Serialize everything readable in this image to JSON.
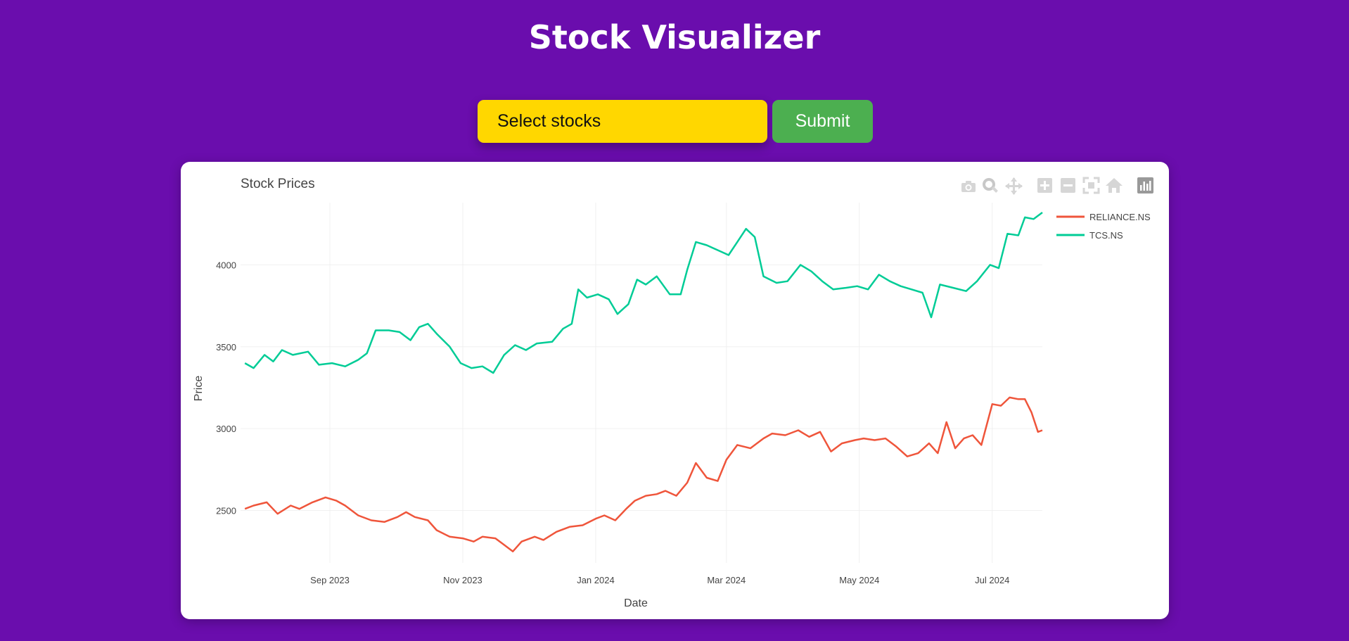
{
  "header": {
    "title": "Stock Visualizer"
  },
  "controls": {
    "select_placeholder": "Select stocks",
    "submit_label": "Submit"
  },
  "modebar": {
    "icons": [
      "camera-icon",
      "zoom-icon",
      "pan-icon",
      "zoom-in-icon",
      "zoom-out-icon",
      "autoscale-icon",
      "reset-axes-icon",
      "plotly-logo-icon"
    ]
  },
  "colors": {
    "background": "#6a0dad",
    "select": "#ffd700",
    "submit": "#4caf50"
  },
  "chart_data": {
    "type": "line",
    "title": "Stock Prices",
    "xlabel": "Date",
    "ylabel": "Price",
    "xlim": [
      "2023-07-22",
      "2024-07-24"
    ],
    "ylim": [
      2180,
      4380
    ],
    "x_ticks": [
      {
        "date": "2023-09-01",
        "label": "Sep 2023"
      },
      {
        "date": "2023-11-01",
        "label": "Nov 2023"
      },
      {
        "date": "2024-01-01",
        "label": "Jan 2024"
      },
      {
        "date": "2024-03-01",
        "label": "Mar 2024"
      },
      {
        "date": "2024-05-01",
        "label": "May 2024"
      },
      {
        "date": "2024-07-01",
        "label": "Jul 2024"
      }
    ],
    "y_ticks": [
      2500,
      3000,
      3500,
      4000
    ],
    "legend_position": "top-right",
    "series": [
      {
        "name": "RELIANCE.NS",
        "color": "#ef553b",
        "points": [
          [
            "2023-07-24",
            2510
          ],
          [
            "2023-07-28",
            2530
          ],
          [
            "2023-08-03",
            2550
          ],
          [
            "2023-08-08",
            2480
          ],
          [
            "2023-08-14",
            2530
          ],
          [
            "2023-08-18",
            2510
          ],
          [
            "2023-08-24",
            2550
          ],
          [
            "2023-08-30",
            2580
          ],
          [
            "2023-09-04",
            2560
          ],
          [
            "2023-09-08",
            2530
          ],
          [
            "2023-09-14",
            2470
          ],
          [
            "2023-09-20",
            2440
          ],
          [
            "2023-09-26",
            2430
          ],
          [
            "2023-10-02",
            2460
          ],
          [
            "2023-10-06",
            2490
          ],
          [
            "2023-10-10",
            2460
          ],
          [
            "2023-10-16",
            2440
          ],
          [
            "2023-10-20",
            2380
          ],
          [
            "2023-10-26",
            2340
          ],
          [
            "2023-11-01",
            2330
          ],
          [
            "2023-11-06",
            2310
          ],
          [
            "2023-11-10",
            2340
          ],
          [
            "2023-11-16",
            2330
          ],
          [
            "2023-11-20",
            2290
          ],
          [
            "2023-11-24",
            2250
          ],
          [
            "2023-11-28",
            2310
          ],
          [
            "2023-12-04",
            2340
          ],
          [
            "2023-12-08",
            2320
          ],
          [
            "2023-12-14",
            2370
          ],
          [
            "2023-12-20",
            2400
          ],
          [
            "2023-12-26",
            2410
          ],
          [
            "2024-01-01",
            2450
          ],
          [
            "2024-01-05",
            2470
          ],
          [
            "2024-01-10",
            2440
          ],
          [
            "2024-01-15",
            2510
          ],
          [
            "2024-01-19",
            2560
          ],
          [
            "2024-01-24",
            2590
          ],
          [
            "2024-01-29",
            2600
          ],
          [
            "2024-02-02",
            2620
          ],
          [
            "2024-02-07",
            2590
          ],
          [
            "2024-02-12",
            2670
          ],
          [
            "2024-02-16",
            2790
          ],
          [
            "2024-02-21",
            2700
          ],
          [
            "2024-02-26",
            2680
          ],
          [
            "2024-03-01",
            2810
          ],
          [
            "2024-03-06",
            2900
          ],
          [
            "2024-03-12",
            2880
          ],
          [
            "2024-03-18",
            2940
          ],
          [
            "2024-03-22",
            2970
          ],
          [
            "2024-03-28",
            2960
          ],
          [
            "2024-04-03",
            2990
          ],
          [
            "2024-04-08",
            2950
          ],
          [
            "2024-04-13",
            2980
          ],
          [
            "2024-04-18",
            2860
          ],
          [
            "2024-04-23",
            2910
          ],
          [
            "2024-04-29",
            2930
          ],
          [
            "2024-05-03",
            2940
          ],
          [
            "2024-05-08",
            2930
          ],
          [
            "2024-05-13",
            2940
          ],
          [
            "2024-05-18",
            2890
          ],
          [
            "2024-05-23",
            2830
          ],
          [
            "2024-05-28",
            2850
          ],
          [
            "2024-06-02",
            2910
          ],
          [
            "2024-06-06",
            2850
          ],
          [
            "2024-06-10",
            3040
          ],
          [
            "2024-06-14",
            2880
          ],
          [
            "2024-06-18",
            2940
          ],
          [
            "2024-06-22",
            2960
          ],
          [
            "2024-06-26",
            2900
          ],
          [
            "2024-07-01",
            3150
          ],
          [
            "2024-07-05",
            3140
          ],
          [
            "2024-07-09",
            3190
          ],
          [
            "2024-07-13",
            3180
          ],
          [
            "2024-07-16",
            3180
          ],
          [
            "2024-07-19",
            3100
          ],
          [
            "2024-07-22",
            2980
          ],
          [
            "2024-07-24",
            2990
          ]
        ]
      },
      {
        "name": "TCS.NS",
        "color": "#00cc96",
        "points": [
          [
            "2023-07-24",
            3400
          ],
          [
            "2023-07-28",
            3370
          ],
          [
            "2023-08-02",
            3450
          ],
          [
            "2023-08-06",
            3410
          ],
          [
            "2023-08-10",
            3480
          ],
          [
            "2023-08-15",
            3450
          ],
          [
            "2023-08-22",
            3470
          ],
          [
            "2023-08-27",
            3390
          ],
          [
            "2023-09-02",
            3400
          ],
          [
            "2023-09-08",
            3380
          ],
          [
            "2023-09-14",
            3420
          ],
          [
            "2023-09-18",
            3460
          ],
          [
            "2023-09-22",
            3600
          ],
          [
            "2023-09-28",
            3600
          ],
          [
            "2023-10-03",
            3590
          ],
          [
            "2023-10-08",
            3540
          ],
          [
            "2023-10-12",
            3620
          ],
          [
            "2023-10-16",
            3640
          ],
          [
            "2023-10-20",
            3580
          ],
          [
            "2023-10-26",
            3500
          ],
          [
            "2023-10-31",
            3400
          ],
          [
            "2023-11-05",
            3370
          ],
          [
            "2023-11-10",
            3380
          ],
          [
            "2023-11-15",
            3340
          ],
          [
            "2023-11-20",
            3450
          ],
          [
            "2023-11-25",
            3510
          ],
          [
            "2023-11-30",
            3480
          ],
          [
            "2023-12-05",
            3520
          ],
          [
            "2023-12-12",
            3530
          ],
          [
            "2023-12-17",
            3610
          ],
          [
            "2023-12-21",
            3640
          ],
          [
            "2023-12-24",
            3850
          ],
          [
            "2023-12-28",
            3800
          ],
          [
            "2024-01-02",
            3820
          ],
          [
            "2024-01-07",
            3790
          ],
          [
            "2024-01-11",
            3700
          ],
          [
            "2024-01-16",
            3760
          ],
          [
            "2024-01-20",
            3910
          ],
          [
            "2024-01-24",
            3880
          ],
          [
            "2024-01-29",
            3930
          ],
          [
            "2024-02-04",
            3820
          ],
          [
            "2024-02-09",
            3820
          ],
          [
            "2024-02-12",
            3970
          ],
          [
            "2024-02-16",
            4140
          ],
          [
            "2024-02-21",
            4120
          ],
          [
            "2024-02-26",
            4090
          ],
          [
            "2024-03-02",
            4060
          ],
          [
            "2024-03-06",
            4140
          ],
          [
            "2024-03-10",
            4220
          ],
          [
            "2024-03-14",
            4170
          ],
          [
            "2024-03-18",
            3930
          ],
          [
            "2024-03-24",
            3890
          ],
          [
            "2024-03-29",
            3900
          ],
          [
            "2024-04-04",
            4000
          ],
          [
            "2024-04-09",
            3960
          ],
          [
            "2024-04-14",
            3900
          ],
          [
            "2024-04-19",
            3850
          ],
          [
            "2024-04-25",
            3860
          ],
          [
            "2024-04-30",
            3870
          ],
          [
            "2024-05-05",
            3850
          ],
          [
            "2024-05-10",
            3940
          ],
          [
            "2024-05-15",
            3900
          ],
          [
            "2024-05-20",
            3870
          ],
          [
            "2024-05-25",
            3850
          ],
          [
            "2024-05-30",
            3830
          ],
          [
            "2024-06-03",
            3680
          ],
          [
            "2024-06-07",
            3880
          ],
          [
            "2024-06-13",
            3860
          ],
          [
            "2024-06-19",
            3840
          ],
          [
            "2024-06-24",
            3900
          ],
          [
            "2024-06-30",
            4000
          ],
          [
            "2024-07-04",
            3980
          ],
          [
            "2024-07-08",
            4190
          ],
          [
            "2024-07-13",
            4180
          ],
          [
            "2024-07-16",
            4290
          ],
          [
            "2024-07-20",
            4280
          ],
          [
            "2024-07-24",
            4320
          ]
        ]
      }
    ]
  }
}
